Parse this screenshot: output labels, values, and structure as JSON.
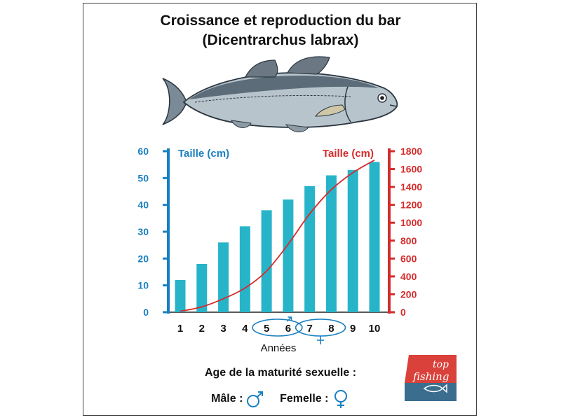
{
  "title_line1": "Croissance et reproduction du bar",
  "title_line2": "(Dicentrarchus labrax)",
  "chart_data": {
    "type": "bar",
    "categories": [
      "1",
      "2",
      "3",
      "4",
      "5",
      "6",
      "7",
      "8",
      "9",
      "10"
    ],
    "series": [
      {
        "name": "Taille (cm)",
        "type": "bar",
        "axis": "left",
        "color": "#27b4c9",
        "values": [
          12,
          18,
          26,
          32,
          38,
          42,
          47,
          51,
          53,
          56
        ]
      },
      {
        "name": "Taille (cm)",
        "type": "line",
        "axis": "right",
        "color": "#d62b2b",
        "values": [
          10,
          60,
          150,
          270,
          460,
          760,
          1100,
          1370,
          1560,
          1700
        ]
      }
    ],
    "left_axis": {
      "label": "Taille (cm)",
      "ylim": [
        0,
        60
      ],
      "ticks": [
        0,
        10,
        20,
        30,
        40,
        50,
        60
      ],
      "color": "#1a7fc1"
    },
    "right_axis": {
      "label": "Taille (cm)",
      "ylim": [
        0,
        1800
      ],
      "ticks": [
        0,
        200,
        400,
        600,
        800,
        1000,
        1200,
        1400,
        1600,
        1800
      ],
      "color": "#d62b2b"
    },
    "xlabel": "Années",
    "grid": false,
    "annotations": [
      {
        "categories": [
          "5",
          "6"
        ],
        "symbol": "male"
      },
      {
        "categories": [
          "7",
          "8"
        ],
        "symbol": "female"
      }
    ]
  },
  "maturity": {
    "title": "Age de la maturité sexuelle :",
    "male_label": "Mâle :",
    "female_label": "Femelle :"
  },
  "logo": {
    "line1": "top",
    "line2": "fishing",
    "colors": {
      "top": "#d9413a",
      "bottom": "#3b6d8f"
    }
  }
}
